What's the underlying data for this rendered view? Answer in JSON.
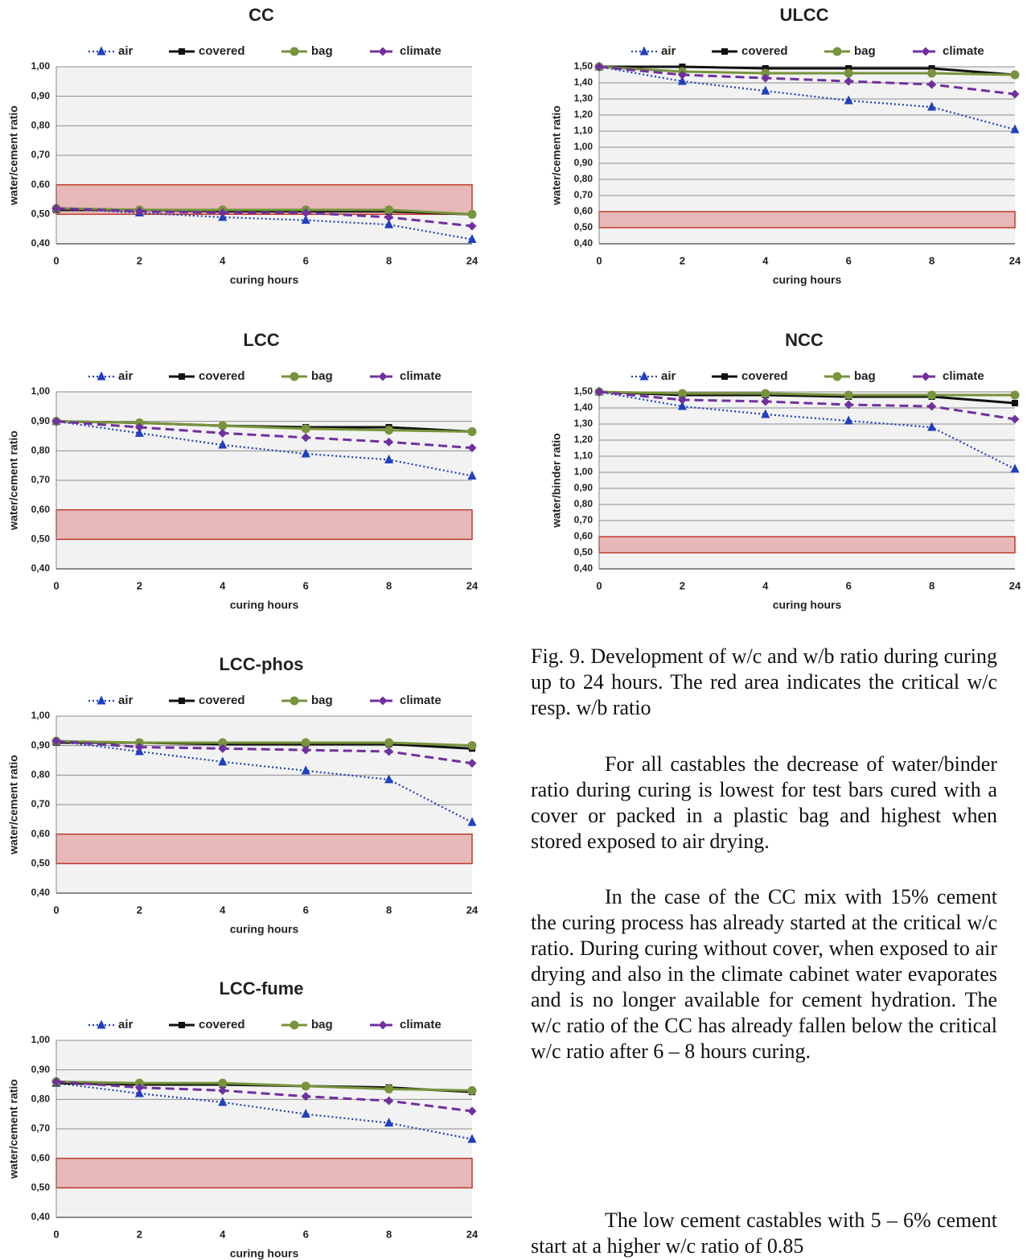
{
  "chart_data": [
    {
      "type": "line",
      "title": "CC",
      "xlabel": "curing hours",
      "ylabel": "water/cement ratio",
      "categories": [
        "0",
        "2",
        "4",
        "6",
        "8",
        "24"
      ],
      "ylim": [
        0.4,
        1.0
      ],
      "yticks": [
        {
          "value": 0.4,
          "label": "0,40"
        },
        {
          "value": 0.5,
          "label": "0,50"
        },
        {
          "value": 0.6,
          "label": "0,60"
        },
        {
          "value": 0.7,
          "label": "0,70"
        },
        {
          "value": 0.8,
          "label": "0,80"
        },
        {
          "value": 0.9,
          "label": "0,90"
        },
        {
          "value": 1.0,
          "label": "1,00"
        }
      ],
      "grid": true,
      "critical_band": [
        0.5,
        0.6
      ],
      "series": [
        {
          "name": "air",
          "color": "#1f3fbf",
          "dash": "dotted",
          "marker": "triangle",
          "values": [
            0.52,
            0.505,
            0.49,
            0.48,
            0.465,
            0.415
          ]
        },
        {
          "name": "covered",
          "color": "#111111",
          "dash": "solid",
          "marker": "square",
          "values": [
            0.515,
            0.515,
            0.51,
            0.51,
            0.51,
            0.5
          ]
        },
        {
          "name": "bag",
          "color": "#77933c",
          "dash": "solid",
          "marker": "circle",
          "values": [
            0.52,
            0.515,
            0.515,
            0.515,
            0.515,
            0.5
          ]
        },
        {
          "name": "climate",
          "color": "#7030a0",
          "dash": "dashed",
          "marker": "diamond",
          "values": [
            0.52,
            0.51,
            0.505,
            0.505,
            0.49,
            0.46
          ]
        }
      ]
    },
    {
      "type": "line",
      "title": "ULCC",
      "xlabel": "curing hours",
      "ylabel": "water/cement ratio",
      "categories": [
        "0",
        "2",
        "4",
        "6",
        "8",
        "24"
      ],
      "ylim": [
        0.4,
        1.5
      ],
      "yticks": [
        {
          "value": 0.4,
          "label": "0,40"
        },
        {
          "value": 0.5,
          "label": "0,50"
        },
        {
          "value": 0.6,
          "label": "0,60"
        },
        {
          "value": 0.7,
          "label": "0,70"
        },
        {
          "value": 0.8,
          "label": "0,80"
        },
        {
          "value": 0.9,
          "label": "0,90"
        },
        {
          "value": 1.0,
          "label": "1,00"
        },
        {
          "value": 1.1,
          "label": "1,10"
        },
        {
          "value": 1.2,
          "label": "1,20"
        },
        {
          "value": 1.3,
          "label": "1,30"
        },
        {
          "value": 1.4,
          "label": "1,40"
        },
        {
          "value": 1.5,
          "label": "1,50"
        }
      ],
      "grid": true,
      "critical_band": [
        0.5,
        0.6
      ],
      "series": [
        {
          "name": "air",
          "color": "#1f3fbf",
          "dash": "dotted",
          "marker": "triangle",
          "values": [
            1.5,
            1.41,
            1.35,
            1.29,
            1.25,
            1.11
          ]
        },
        {
          "name": "covered",
          "color": "#111111",
          "dash": "solid",
          "marker": "square",
          "values": [
            1.5,
            1.5,
            1.49,
            1.49,
            1.49,
            1.45
          ]
        },
        {
          "name": "bag",
          "color": "#77933c",
          "dash": "solid",
          "marker": "circle",
          "values": [
            1.5,
            1.47,
            1.46,
            1.46,
            1.46,
            1.45
          ]
        },
        {
          "name": "climate",
          "color": "#7030a0",
          "dash": "dashed",
          "marker": "diamond",
          "values": [
            1.5,
            1.45,
            1.43,
            1.41,
            1.39,
            1.33
          ]
        }
      ]
    },
    {
      "type": "line",
      "title": "LCC",
      "xlabel": "curing hours",
      "ylabel": "water/cement ratio",
      "categories": [
        "0",
        "2",
        "4",
        "6",
        "8",
        "24"
      ],
      "ylim": [
        0.4,
        1.0
      ],
      "yticks": [
        {
          "value": 0.4,
          "label": "0,40"
        },
        {
          "value": 0.5,
          "label": "0,50"
        },
        {
          "value": 0.6,
          "label": "0,60"
        },
        {
          "value": 0.7,
          "label": "0,70"
        },
        {
          "value": 0.8,
          "label": "0,80"
        },
        {
          "value": 0.9,
          "label": "0,90"
        },
        {
          "value": 1.0,
          "label": "1,00"
        }
      ],
      "grid": true,
      "critical_band": [
        0.5,
        0.6
      ],
      "series": [
        {
          "name": "air",
          "color": "#1f3fbf",
          "dash": "dotted",
          "marker": "triangle",
          "values": [
            0.9,
            0.86,
            0.82,
            0.79,
            0.77,
            0.715
          ]
        },
        {
          "name": "covered",
          "color": "#111111",
          "dash": "solid",
          "marker": "square",
          "values": [
            0.9,
            0.895,
            0.885,
            0.88,
            0.88,
            0.865
          ]
        },
        {
          "name": "bag",
          "color": "#77933c",
          "dash": "solid",
          "marker": "circle",
          "values": [
            0.9,
            0.895,
            0.885,
            0.875,
            0.87,
            0.865
          ]
        },
        {
          "name": "climate",
          "color": "#7030a0",
          "dash": "dashed",
          "marker": "diamond",
          "values": [
            0.9,
            0.88,
            0.86,
            0.845,
            0.83,
            0.81
          ]
        }
      ]
    },
    {
      "type": "line",
      "title": "NCC",
      "xlabel": "curing hours",
      "ylabel": "water/binder ratio",
      "categories": [
        "0",
        "2",
        "4",
        "6",
        "8",
        "24"
      ],
      "ylim": [
        0.4,
        1.5
      ],
      "yticks": [
        {
          "value": 0.4,
          "label": "0,40"
        },
        {
          "value": 0.5,
          "label": "0,50"
        },
        {
          "value": 0.6,
          "label": "0,60"
        },
        {
          "value": 0.7,
          "label": "0,70"
        },
        {
          "value": 0.8,
          "label": "0,80"
        },
        {
          "value": 0.9,
          "label": "0,90"
        },
        {
          "value": 1.0,
          "label": "1,00"
        },
        {
          "value": 1.1,
          "label": "1,10"
        },
        {
          "value": 1.2,
          "label": "1,20"
        },
        {
          "value": 1.3,
          "label": "1,30"
        },
        {
          "value": 1.4,
          "label": "1,40"
        },
        {
          "value": 1.5,
          "label": "1,50"
        }
      ],
      "grid": true,
      "critical_band": [
        0.5,
        0.6
      ],
      "series": [
        {
          "name": "air",
          "color": "#1f3fbf",
          "dash": "dotted",
          "marker": "triangle",
          "values": [
            1.5,
            1.41,
            1.36,
            1.32,
            1.28,
            1.02
          ]
        },
        {
          "name": "covered",
          "color": "#111111",
          "dash": "solid",
          "marker": "square",
          "values": [
            1.5,
            1.48,
            1.48,
            1.47,
            1.47,
            1.43
          ]
        },
        {
          "name": "bag",
          "color": "#77933c",
          "dash": "solid",
          "marker": "circle",
          "values": [
            1.5,
            1.49,
            1.49,
            1.48,
            1.48,
            1.48
          ]
        },
        {
          "name": "climate",
          "color": "#7030a0",
          "dash": "dashed",
          "marker": "diamond",
          "values": [
            1.5,
            1.45,
            1.44,
            1.42,
            1.41,
            1.33
          ]
        }
      ]
    },
    {
      "type": "line",
      "title": "LCC-phos",
      "xlabel": "curing hours",
      "ylabel": "water/cement ratio",
      "categories": [
        "0",
        "2",
        "4",
        "6",
        "8",
        "24"
      ],
      "ylim": [
        0.4,
        1.0
      ],
      "yticks": [
        {
          "value": 0.4,
          "label": "0,40"
        },
        {
          "value": 0.5,
          "label": "0,50"
        },
        {
          "value": 0.6,
          "label": "0,60"
        },
        {
          "value": 0.7,
          "label": "0,70"
        },
        {
          "value": 0.8,
          "label": "0,80"
        },
        {
          "value": 0.9,
          "label": "0,90"
        },
        {
          "value": 1.0,
          "label": "1,00"
        }
      ],
      "grid": true,
      "critical_band": [
        0.5,
        0.6
      ],
      "series": [
        {
          "name": "air",
          "color": "#1f3fbf",
          "dash": "dotted",
          "marker": "triangle",
          "values": [
            0.915,
            0.88,
            0.845,
            0.815,
            0.785,
            0.64
          ]
        },
        {
          "name": "covered",
          "color": "#111111",
          "dash": "solid",
          "marker": "square",
          "values": [
            0.91,
            0.91,
            0.905,
            0.905,
            0.905,
            0.89
          ]
        },
        {
          "name": "bag",
          "color": "#77933c",
          "dash": "solid",
          "marker": "circle",
          "values": [
            0.915,
            0.91,
            0.91,
            0.91,
            0.91,
            0.9
          ]
        },
        {
          "name": "climate",
          "color": "#7030a0",
          "dash": "dashed",
          "marker": "diamond",
          "values": [
            0.915,
            0.895,
            0.89,
            0.885,
            0.88,
            0.84
          ]
        }
      ]
    },
    {
      "type": "line",
      "title": "LCC-fume",
      "xlabel": "curing hours",
      "ylabel": "water/cement ratio",
      "categories": [
        "0",
        "2",
        "4",
        "6",
        "8",
        "24"
      ],
      "ylim": [
        0.4,
        1.0
      ],
      "yticks": [
        {
          "value": 0.4,
          "label": "0,40"
        },
        {
          "value": 0.5,
          "label": "0,50"
        },
        {
          "value": 0.6,
          "label": "0,60"
        },
        {
          "value": 0.7,
          "label": "0,70"
        },
        {
          "value": 0.8,
          "label": "0,80"
        },
        {
          "value": 0.9,
          "label": "0,90"
        },
        {
          "value": 1.0,
          "label": "1,00"
        }
      ],
      "grid": true,
      "critical_band": [
        0.5,
        0.6
      ],
      "series": [
        {
          "name": "air",
          "color": "#1f3fbf",
          "dash": "dotted",
          "marker": "triangle",
          "values": [
            0.855,
            0.82,
            0.79,
            0.75,
            0.72,
            0.665
          ]
        },
        {
          "name": "covered",
          "color": "#111111",
          "dash": "solid",
          "marker": "square",
          "values": [
            0.855,
            0.85,
            0.85,
            0.845,
            0.84,
            0.825
          ]
        },
        {
          "name": "bag",
          "color": "#77933c",
          "dash": "solid",
          "marker": "circle",
          "values": [
            0.86,
            0.855,
            0.855,
            0.845,
            0.835,
            0.83
          ]
        },
        {
          "name": "climate",
          "color": "#7030a0",
          "dash": "dashed",
          "marker": "diamond",
          "values": [
            0.86,
            0.84,
            0.83,
            0.81,
            0.795,
            0.76
          ]
        }
      ]
    }
  ],
  "caption": "Fig. 9. Development of w/c and w/b ratio during curing up to 24 hours. The red area indicates the critical w/c resp. w/b ratio",
  "paragraphs": [
    "For all castables the decrease of water/binder ratio during curing is lowest for test bars cured with a cover or packed in a plastic bag and highest when stored exposed to air drying.",
    "In the case of the CC mix with 15% cement the curing process has already started at the critical w/c ratio. During curing without cover, when exposed to air drying and also in the climate cabinet water evaporates and is no longer available for cement hydration. The w/c ratio of the CC has already fallen below the critical w/c ratio after 6 – 8 hours curing.",
    "The low cement castables with 5 – 6% cement start at a higher w/c ratio of 0.85"
  ]
}
